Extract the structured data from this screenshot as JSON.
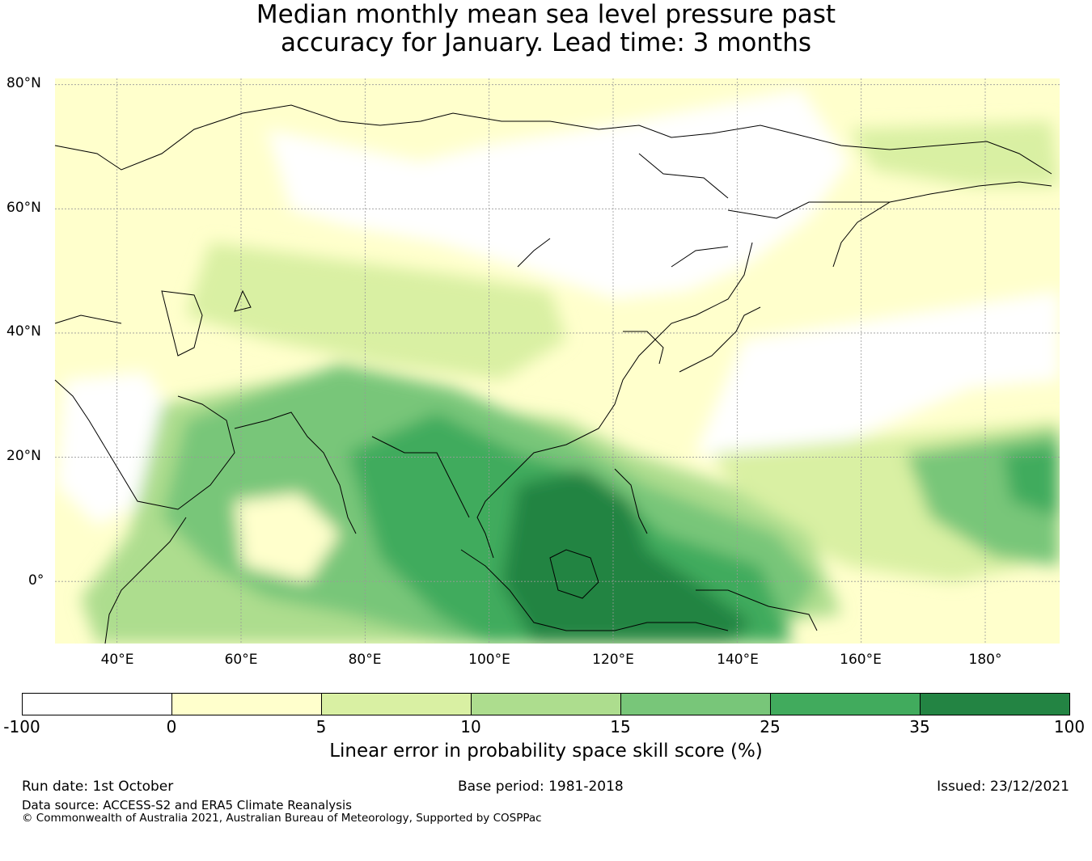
{
  "title": {
    "line1": "Median monthly mean sea level pressure past",
    "line2": "accuracy for January. Lead time: 3 months"
  },
  "map": {
    "lat_labels": [
      "80°N",
      "60°N",
      "40°N",
      "20°N",
      "0°"
    ],
    "lon_labels": [
      "40°E",
      "60°E",
      "80°E",
      "100°E",
      "120°E",
      "140°E",
      "160°E",
      "180°"
    ],
    "extent": {
      "lon_min": 30,
      "lon_max": 192,
      "lat_min": -10,
      "lat_max": 81
    }
  },
  "colorbar": {
    "tick_labels": [
      "-100",
      "0",
      "5",
      "10",
      "15",
      "25",
      "35",
      "100"
    ],
    "colors": [
      "#ffffff",
      "#ffffcc",
      "#d9f0a3",
      "#addd8e",
      "#78c679",
      "#41ab5d",
      "#238443"
    ],
    "title": "Linear error in probability space skill score (%)"
  },
  "footer": {
    "run_date": "Run date: 1st October",
    "base_period": "Base period: 1981-2018",
    "issued": "Issued: 23/12/2021",
    "data_source": "Data source: ACCESS-S2 and ERA5 Climate Reanalysis",
    "copyright": "© Commonwealth of Australia 2021, Australian Bureau of Meteorology, Supported by COSPPac"
  }
}
